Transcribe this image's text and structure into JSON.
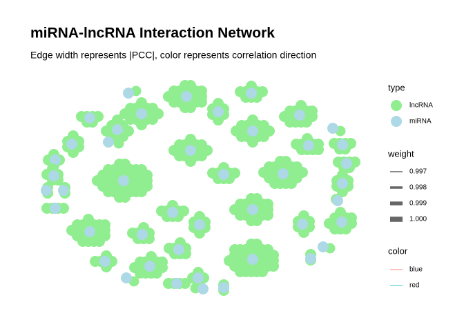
{
  "title": "miRNA-lncRNA Interaction Network",
  "subtitle": "Edge width represents |PCC|, color represents correlation direction",
  "legend": {
    "type": {
      "title": "type",
      "entries": [
        {
          "label": "lncRNA",
          "color": "#90EE90"
        },
        {
          "label": "miRNA",
          "color": "#ADD8E6"
        }
      ]
    },
    "weight": {
      "title": "weight",
      "entries": [
        "0.997",
        "0.998",
        "0.999",
        "1.000"
      ]
    },
    "color": {
      "title": "color",
      "entries": [
        {
          "label": "blue",
          "color": "#F8B4AE"
        },
        {
          "label": "red",
          "color": "#7FD8DB"
        }
      ]
    }
  }
}
